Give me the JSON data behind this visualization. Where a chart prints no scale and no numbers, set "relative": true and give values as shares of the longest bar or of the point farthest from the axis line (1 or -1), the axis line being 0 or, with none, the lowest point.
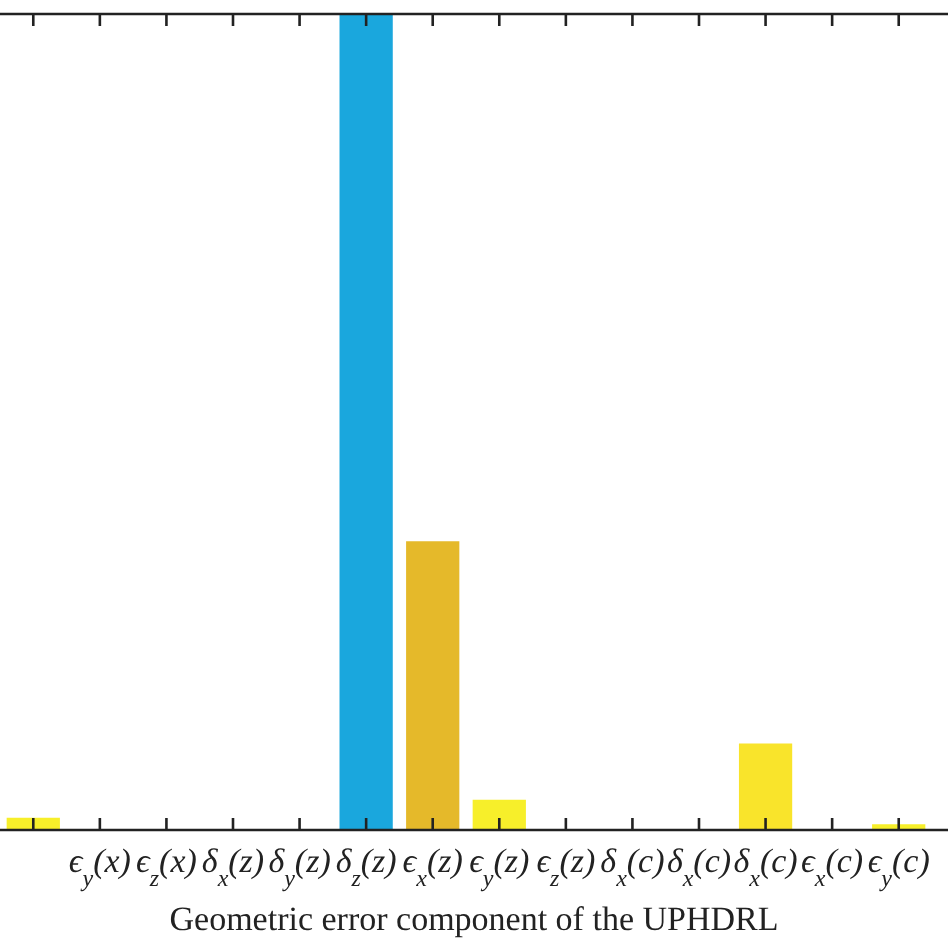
{
  "chart_data": {
    "type": "bar",
    "relative": true,
    "xlabel": "Geometric error component of the UPHDRL",
    "categories": [
      null,
      "ϵ$_{y}$(x)",
      "ϵ$_{z}$(x)",
      "δ$_{x}$(z)",
      "δ$_{y}$(z)",
      "δ$_{z}$(z)",
      "ϵ$_{x}$(z)",
      "ϵ$_{y}$(z)",
      "ϵ$_{z}$(z)",
      "δ$_{x}$(c)",
      "δ$_{x}$(c)",
      "δ$_{x}$(c)",
      "ϵ$_{x}$(c)",
      "ϵ$_{y}$(c)"
    ],
    "values": [
      0.015,
      0,
      0,
      0,
      0,
      1,
      0.354,
      0.037,
      0,
      0,
      0,
      0.106,
      0,
      0.007
    ],
    "colors": [
      "#f7ef2a",
      "#f7ef2a",
      "#f7ef2a",
      "#f7ef2a",
      "#f7ef2a",
      "#1aa7dd",
      "#e5b92a",
      "#f7ef2a",
      "#f7ef2a",
      "#f7ef2a",
      "#f7ef2a",
      "#f9e42b",
      "#f7ef2a",
      "#f7ef2a"
    ],
    "grid": false,
    "legend": false
  }
}
